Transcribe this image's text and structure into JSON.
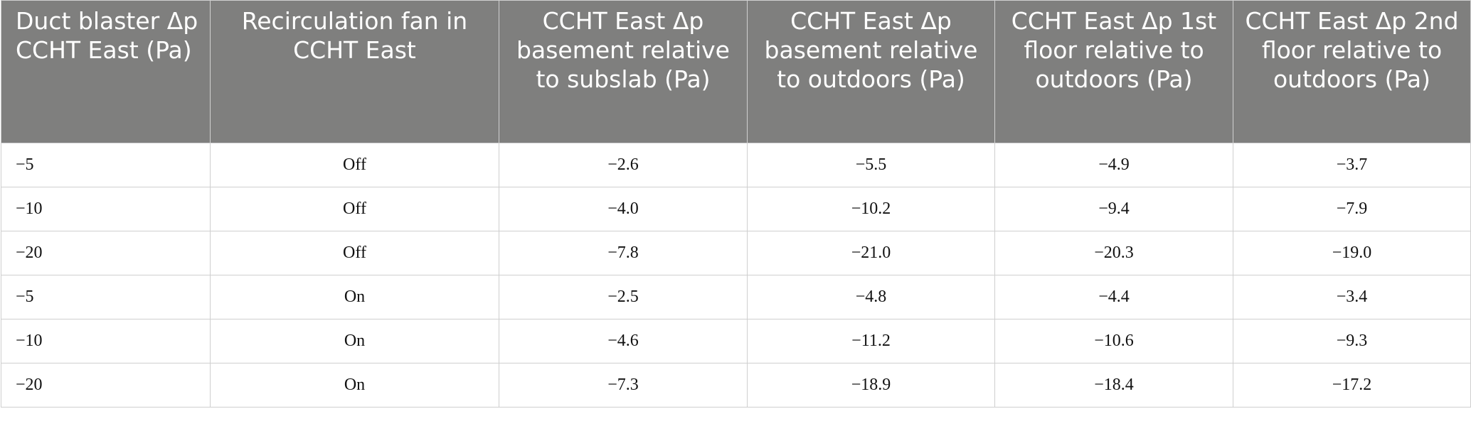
{
  "table": {
    "header": [
      "Duct blaster Δp CCHT East (Pa)",
      "Recirculation fan in CCHT East",
      "CCHT East Δp basement relative to subslab (Pa)",
      "CCHT East Δp basement relative to outdoors (Pa)",
      "CCHT East Δp 1st floor relative to outdoors (Pa)",
      "CCHT East Δp 2nd floor relative to outdoors (Pa)"
    ],
    "rows": [
      [
        "−5",
        "Off",
        "−2.6",
        "−5.5",
        "−4.9",
        "−3.7"
      ],
      [
        "−10",
        "Off",
        "−4.0",
        "−10.2",
        "−9.4",
        "−7.9"
      ],
      [
        "−20",
        "Off",
        "−7.8",
        "−21.0",
        "−20.3",
        "−19.0"
      ],
      [
        "−5",
        "On",
        "−2.5",
        "−4.8",
        "−4.4",
        "−3.4"
      ],
      [
        "−10",
        "On",
        "−4.6",
        "−11.2",
        "−10.6",
        "−9.3"
      ],
      [
        "−20",
        "On",
        "−7.3",
        "−18.9",
        "−18.4",
        "−17.2"
      ]
    ]
  }
}
